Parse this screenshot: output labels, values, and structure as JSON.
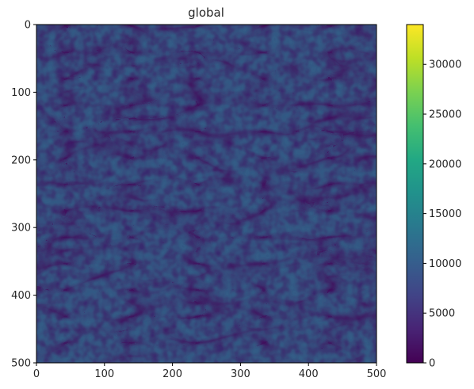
{
  "chart_data": {
    "type": "heatmap",
    "title": "global",
    "xlabel": "",
    "ylabel": "",
    "xlim": [
      0,
      500
    ],
    "ylim": [
      500,
      0
    ],
    "x_ticks": [
      "0",
      "100",
      "200",
      "300",
      "400",
      "500"
    ],
    "y_ticks": [
      "0",
      "100",
      "200",
      "300",
      "400",
      "500"
    ],
    "colormap": "viridis",
    "colorbar": {
      "range": [
        0,
        34000
      ],
      "ticks": [
        "0",
        "5000",
        "10000",
        "15000",
        "20000",
        "25000",
        "30000"
      ]
    },
    "grid": false
  }
}
